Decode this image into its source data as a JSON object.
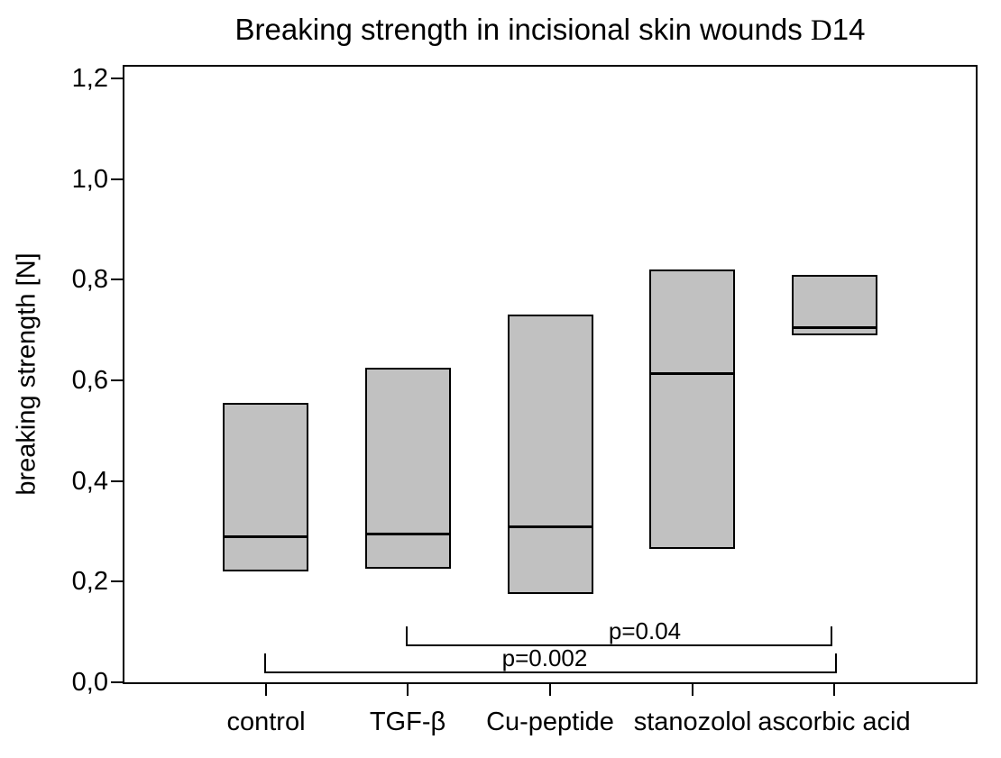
{
  "title": {
    "main": "Breaking strength in incisional skin wounds ",
    "day_code_serif": "D",
    "day_code_number": "14"
  },
  "chart_data": {
    "type": "box",
    "title": "Breaking strength in incisional skin wounds D14",
    "ylabel": "breaking strength [N]",
    "xlabel": "",
    "ylim": [
      0,
      1.2
    ],
    "grid": false,
    "legend": false,
    "decimal_separator": "comma",
    "y_ticks": [
      {
        "value": 0.0,
        "label": "0,0"
      },
      {
        "value": 0.2,
        "label": "0,2"
      },
      {
        "value": 0.4,
        "label": "0,4"
      },
      {
        "value": 0.6,
        "label": "0,6"
      },
      {
        "value": 0.8,
        "label": "0,8"
      },
      {
        "value": 1.0,
        "label": "1,0"
      },
      {
        "value": 1.2,
        "label": "1,2"
      }
    ],
    "categories": [
      "control",
      "TGF-β",
      "Cu-peptide",
      "stanozolol",
      "ascorbic acid"
    ],
    "boxes": [
      {
        "category": "control",
        "low": 0.22,
        "median": 0.29,
        "high": 0.555
      },
      {
        "category": "TGF-β",
        "low": 0.225,
        "median": 0.295,
        "high": 0.625
      },
      {
        "category": "Cu-peptide",
        "low": 0.175,
        "median": 0.31,
        "high": 0.73
      },
      {
        "category": "stanozolol",
        "low": 0.265,
        "median": 0.615,
        "high": 0.82
      },
      {
        "category": "ascorbic acid",
        "low": 0.69,
        "median": 0.705,
        "high": 0.81
      }
    ],
    "significance_brackets": [
      {
        "label": "p=0.04",
        "from": "TGF-β",
        "to": "ascorbic acid"
      },
      {
        "label": "p=0.002",
        "from": "control",
        "to": "ascorbic acid"
      }
    ],
    "colors": {
      "box_fill": "#c1c1c1",
      "line": "#000000",
      "background": "#ffffff"
    }
  }
}
